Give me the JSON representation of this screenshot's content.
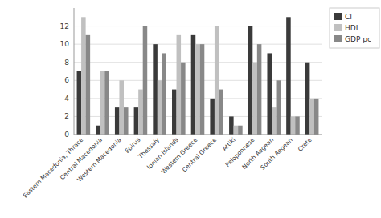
{
  "chart_data": {
    "type": "bar",
    "categories": [
      "Eastern Macedonia, Thrace",
      "Central Macedonia",
      "Western Macedonia",
      "Epirus",
      "Thessaly",
      "Ionian Islands",
      "Western Greece",
      "Central Greece",
      "Attiki",
      "Peloponnese",
      "North Aegean",
      "South Aegean",
      "Crete"
    ],
    "series": [
      {
        "name": "CI",
        "color": "#3a3a3a",
        "values": [
          7,
          1,
          3,
          3,
          10,
          5,
          11,
          4,
          2,
          12,
          9,
          13,
          8
        ]
      },
      {
        "name": "HDI",
        "color": "#c0c0c0",
        "values": [
          13,
          7,
          6,
          5,
          6,
          11,
          10,
          12,
          1,
          8,
          3,
          2,
          4
        ]
      },
      {
        "name": "GDP pc",
        "color": "#888888",
        "values": [
          11,
          7,
          3,
          12,
          9,
          8,
          10,
          5,
          1,
          10,
          6,
          2,
          4
        ]
      }
    ],
    "ylim": [
      0,
      14
    ],
    "yticks": [
      0,
      2,
      4,
      6,
      8,
      10,
      12
    ],
    "grid": true,
    "legend": "upper right"
  }
}
